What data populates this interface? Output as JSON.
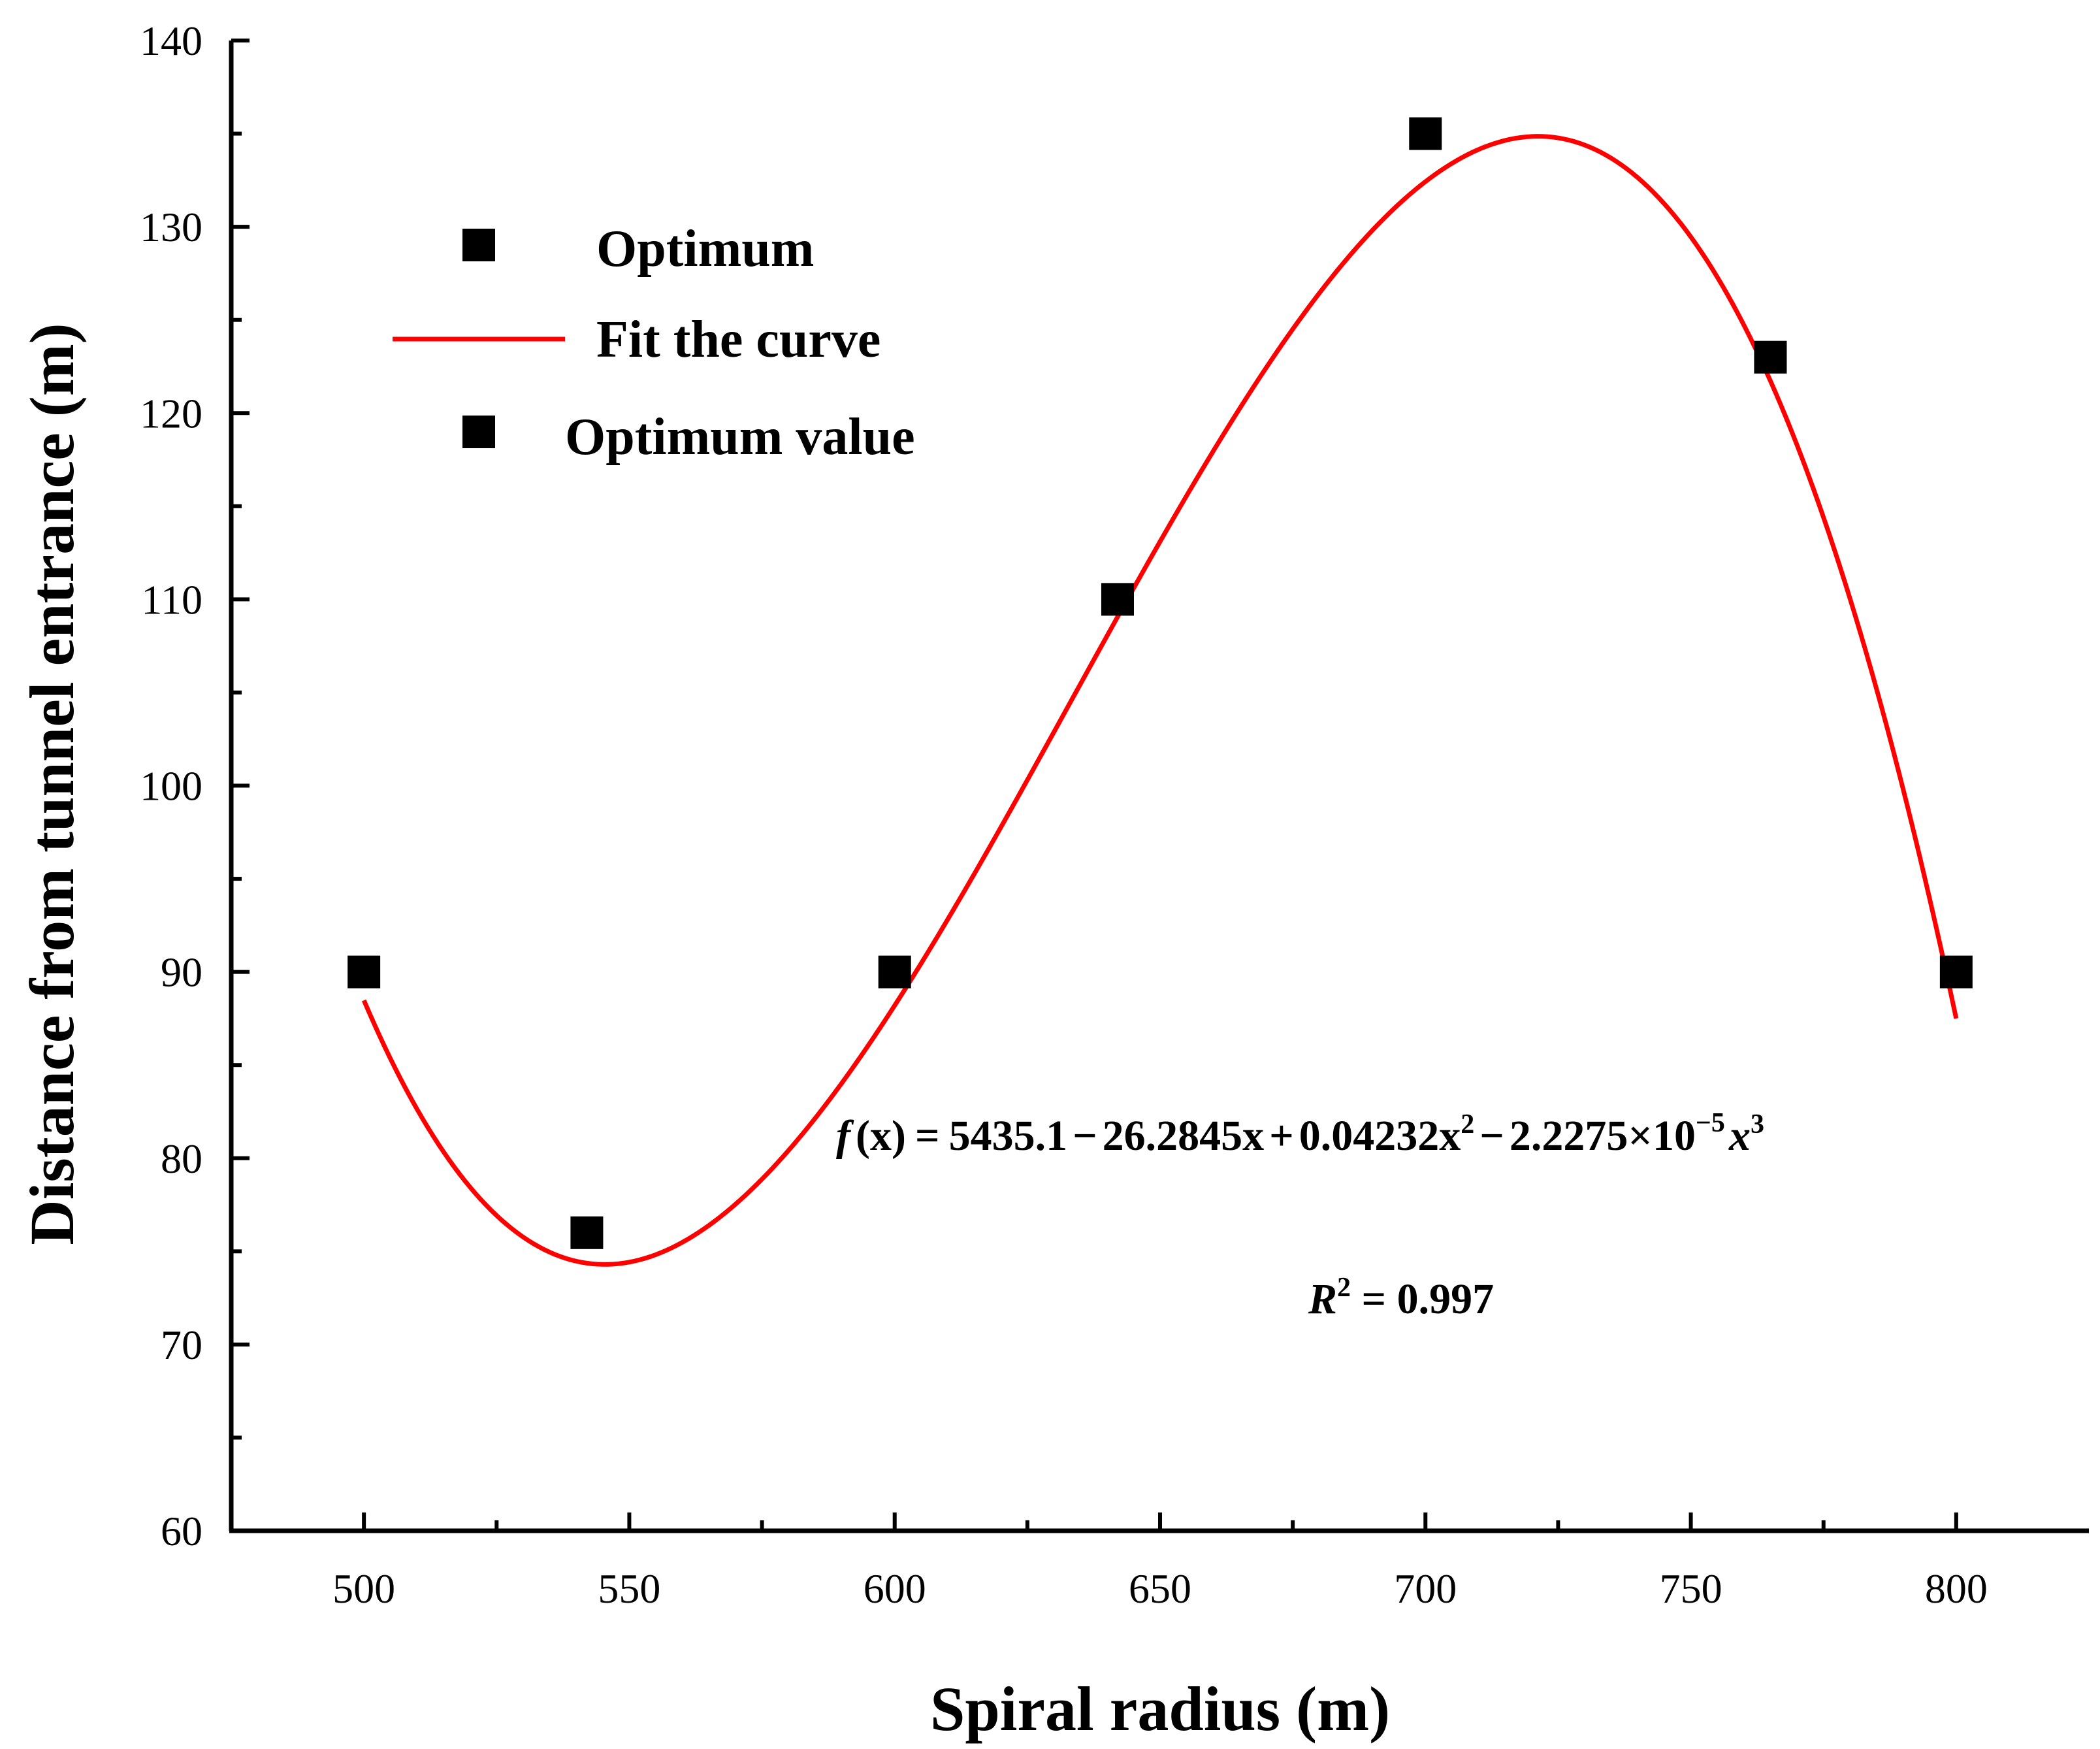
{
  "chart_data": {
    "type": "scatter",
    "xlabel": "Spiral radius (m)",
    "ylabel": "Distance from tunnel entrance (m)",
    "xlim": [
      475,
      825
    ],
    "ylim": [
      60,
      140
    ],
    "xticks": [
      500,
      550,
      600,
      650,
      700,
      750,
      800
    ],
    "yticks": [
      60,
      70,
      80,
      90,
      100,
      110,
      120,
      130,
      140
    ],
    "grid": false,
    "legend_position": "top-left",
    "series": [
      {
        "name": "Optimum",
        "kind": "scatter",
        "marker": "square",
        "color": "#000000",
        "x": [
          500,
          542,
          600,
          642,
          700,
          765,
          800
        ],
        "y": [
          90,
          76,
          90,
          110,
          135,
          123,
          90
        ]
      },
      {
        "name": "Fit the curve",
        "kind": "line",
        "color": "#ff0000",
        "coefficients": [
          5435.1,
          -26.2845,
          0.04232,
          -2.2275e-05
        ],
        "x_range": [
          500,
          800
        ]
      },
      {
        "name": "Optimum value",
        "kind": "scatter",
        "marker": "square",
        "color": "#000000",
        "x": [],
        "y": []
      }
    ],
    "annotations": {
      "equation_lhs": "f",
      "equation_arg": "(x)",
      "equation_eq": "=",
      "term0": "5435.1",
      "minus1": "−",
      "term1": "26.2845x",
      "plus2": "+",
      "term2": "0.04232x",
      "sup2": "2",
      "minus3": "−",
      "term3a": "2.2275×10",
      "sup_exp": "−5",
      "term3b": "x",
      "sup3": "3",
      "r2_lhs": "R",
      "r2_sup": "2",
      "r2_rhs": " = 0.997"
    }
  }
}
